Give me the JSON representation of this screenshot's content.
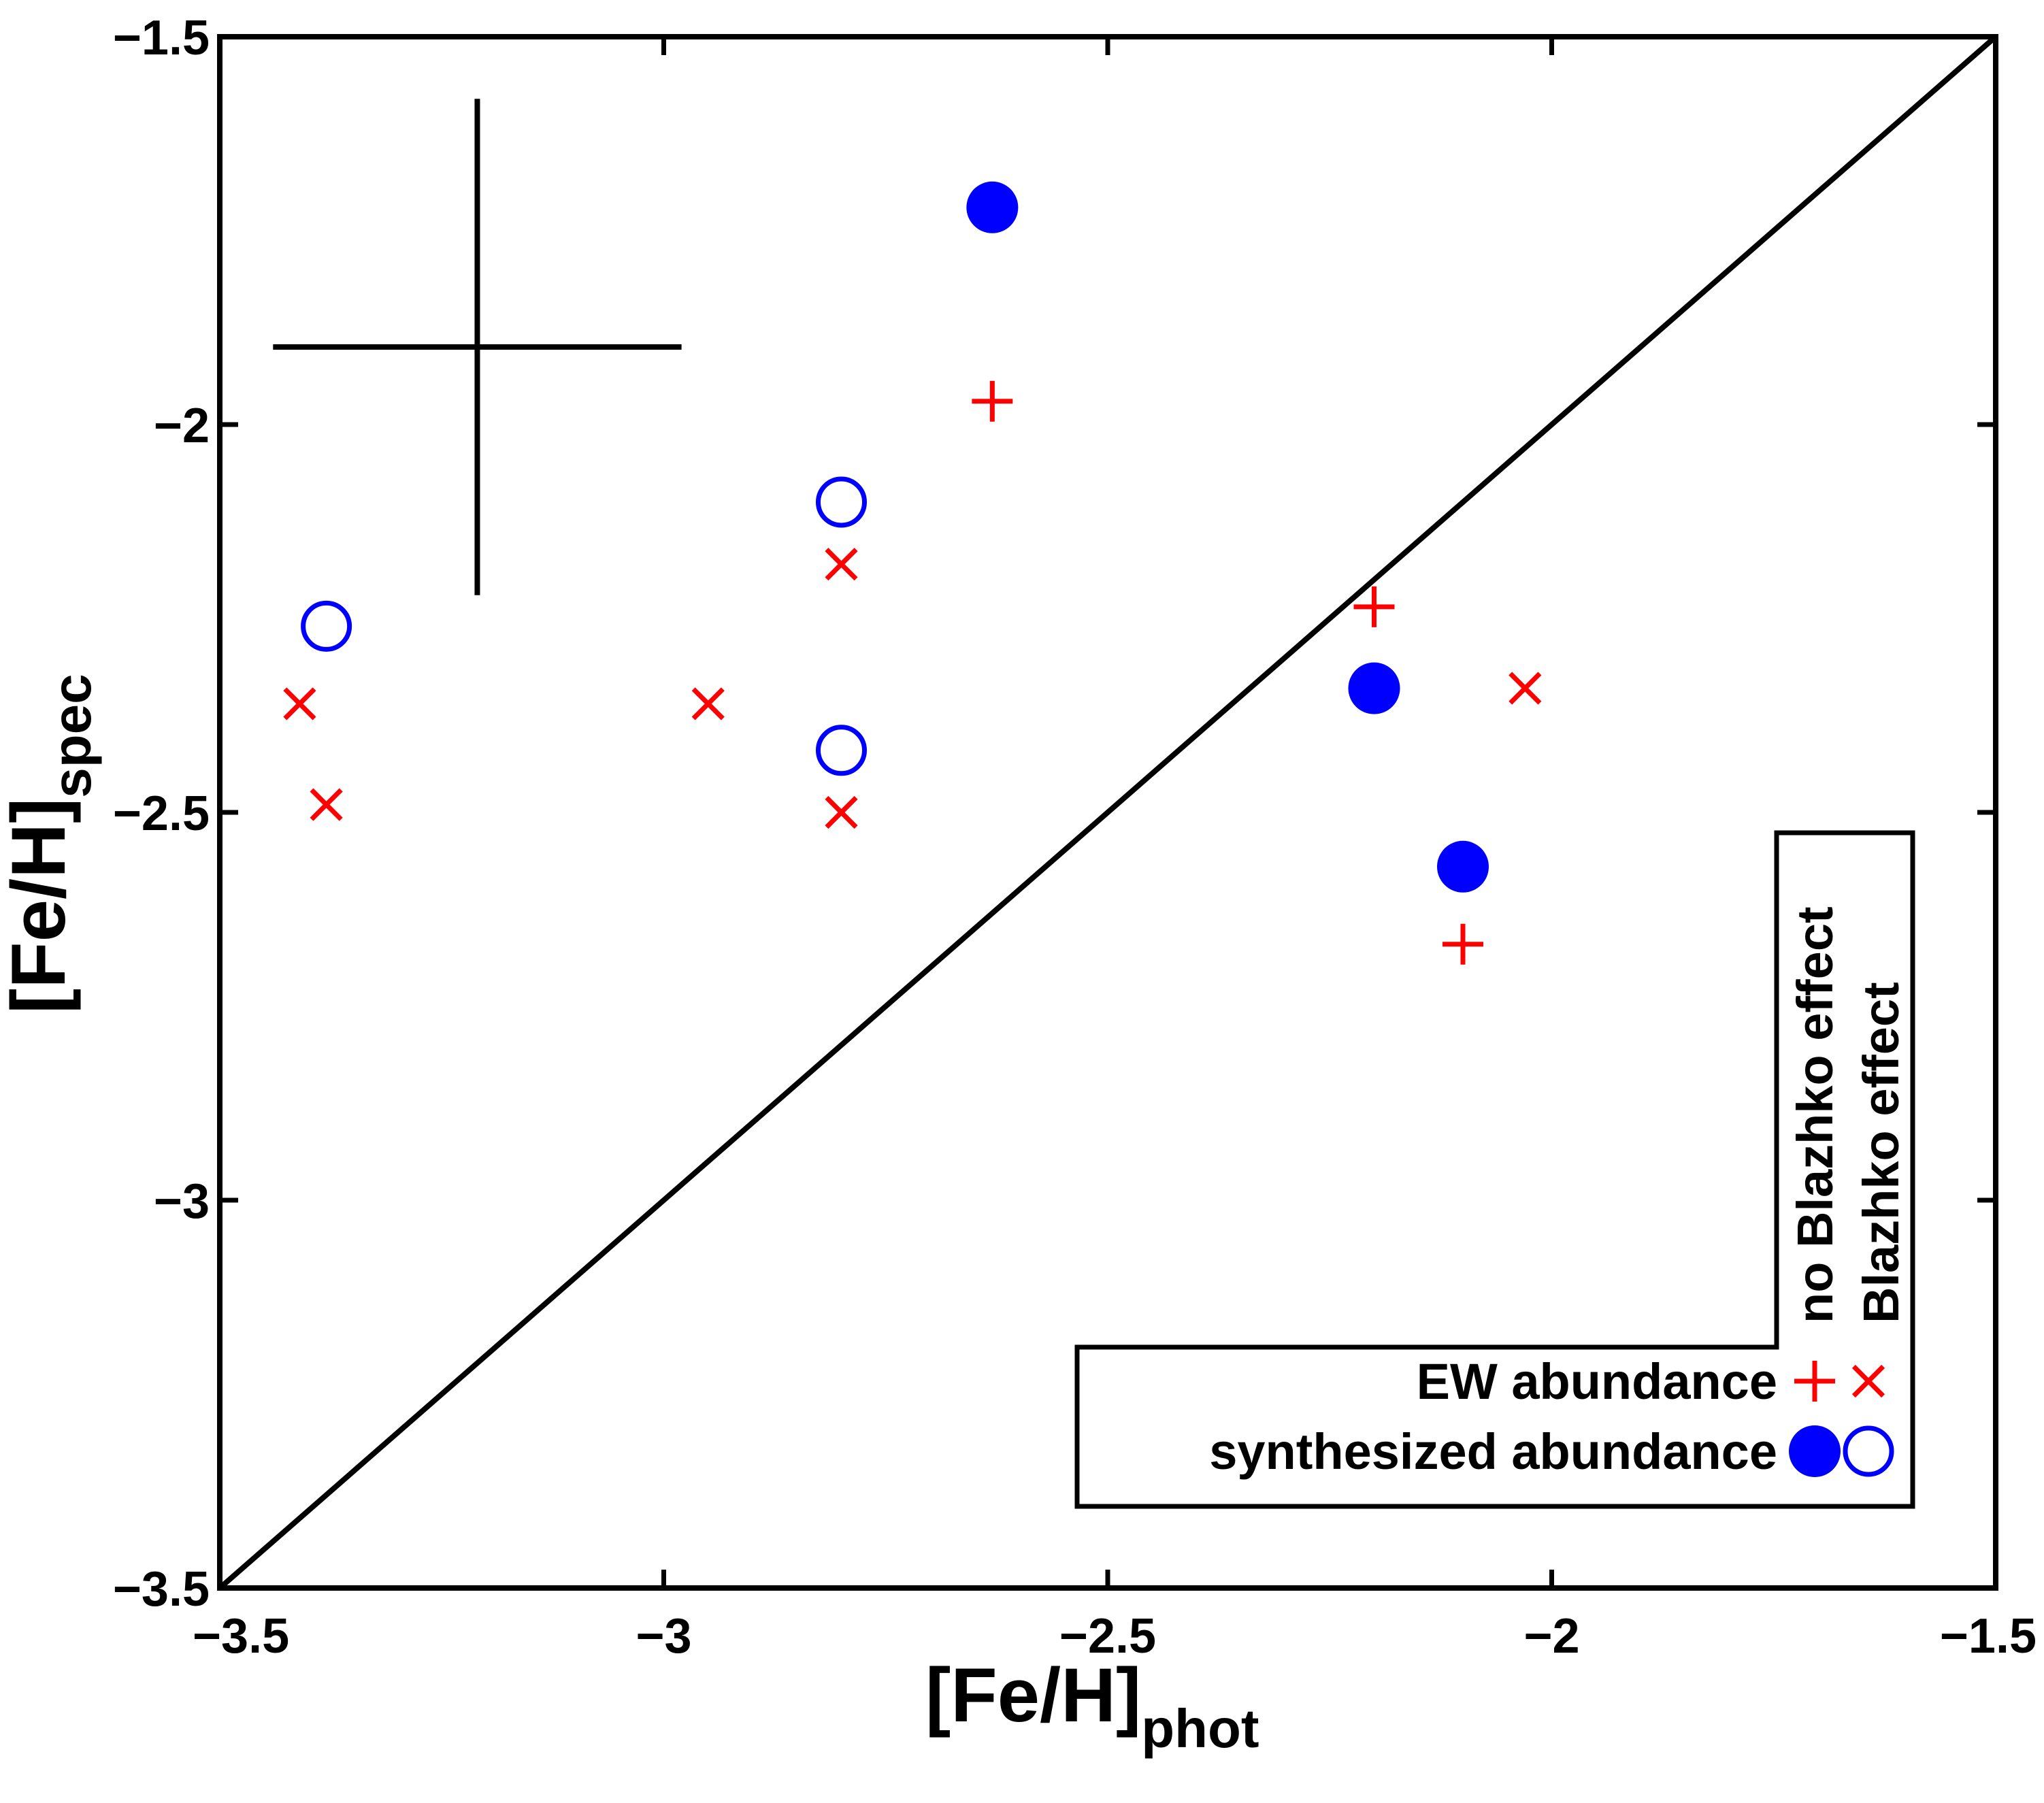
{
  "chart_data": {
    "type": "scatter",
    "xlabel": {
      "text": "[Fe/H]",
      "sub": "phot"
    },
    "ylabel": {
      "text": "[Fe/H]",
      "sub": "spec"
    },
    "xlim": [
      -3.5,
      -1.5
    ],
    "ylim": [
      -3.5,
      -1.5
    ],
    "xticks": [
      {
        "value": -3.5,
        "label": "−3.5"
      },
      {
        "value": -3,
        "label": "−3"
      },
      {
        "value": -2.5,
        "label": "−2.5"
      },
      {
        "value": -2,
        "label": "−2"
      },
      {
        "value": -1.5,
        "label": "−1.5"
      }
    ],
    "yticks": [
      {
        "value": -3.5,
        "label": "−3.5"
      },
      {
        "value": -3,
        "label": "−3"
      },
      {
        "value": -2.5,
        "label": "−2.5"
      },
      {
        "value": -2,
        "label": "−2"
      },
      {
        "value": -1.5,
        "label": "−1.5"
      }
    ],
    "grid": false,
    "identity_line": true,
    "legend": {
      "rows": [
        "EW abundance",
        "synthesized abundance"
      ],
      "columns": [
        "no Blazhko effect",
        "Blazhko effect"
      ]
    },
    "series": [
      {
        "marker": "plus",
        "color": "#ff0000",
        "x": [
          -2.63,
          -2.2,
          -2.1
        ],
        "y": [
          -1.97,
          -2.235,
          -2.67
        ]
      },
      {
        "marker": "cross",
        "color": "#ff0000",
        "x": [
          -3.41,
          -3.38,
          -2.95,
          -2.8,
          -2.8,
          -2.03
        ],
        "y": [
          -2.36,
          -2.49,
          -2.36,
          -2.18,
          -2.5,
          -2.34
        ]
      },
      {
        "marker": "filled-circle",
        "color": "#0000ff",
        "x": [
          -2.63,
          -2.2,
          -2.1
        ],
        "y": [
          -1.72,
          -2.34,
          -2.57
        ]
      },
      {
        "marker": "open-circle",
        "color": "#0000ff",
        "x": [
          -3.38,
          -2.8,
          -2.8
        ],
        "y": [
          -2.26,
          -2.1,
          -2.42
        ]
      }
    ],
    "error_bar": {
      "x": -3.21,
      "y": -1.9,
      "xerr": 0.23,
      "yerr": 0.32
    }
  }
}
